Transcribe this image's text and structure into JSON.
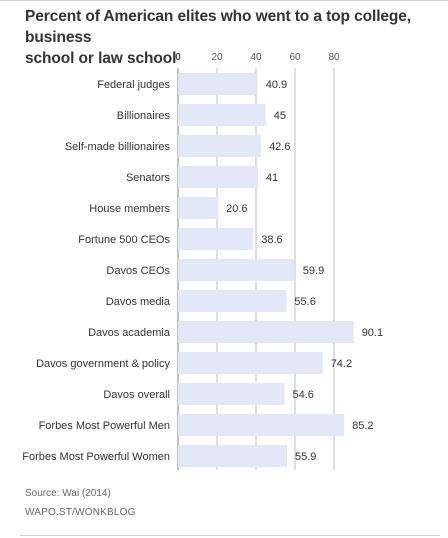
{
  "title_lines": [
    "Percent of American elites who went to a top college, business",
    "school or law school"
  ],
  "source": "Source: Wai (2014)",
  "credit": "WAPO.ST/WONKBLOG",
  "colors": {
    "bar": "#e3e8f8",
    "grid": "#bcbcbc",
    "label": "#333333",
    "value": "#333333"
  },
  "chart_data": {
    "type": "bar",
    "orientation": "horizontal",
    "categories": [
      "Federal judges",
      "Billionaires",
      "Self-made billionaires",
      "Senators",
      "House members",
      "Fortune 500 CEOs",
      "Davos CEOs",
      "Davos media",
      "Davos academia",
      "Davos government & policy",
      "Davos overall",
      "Forbes Most Powerful Men",
      "Forbes Most Powerful Women"
    ],
    "values": [
      40.9,
      45,
      42.6,
      41,
      20.6,
      38.6,
      59.9,
      55.6,
      90.1,
      74.2,
      54.6,
      85.2,
      55.9
    ],
    "value_labels": [
      "40.9",
      "45",
      "42.6",
      "41",
      "20.6",
      "38.6",
      "59.9",
      "55.6",
      "90.1",
      "74.2",
      "54.6",
      "85.2",
      "55.9"
    ],
    "xticks": [
      0,
      20,
      40,
      60,
      80
    ],
    "xtick_labels": [
      "0",
      "20",
      "40",
      "60",
      "80"
    ],
    "xlim": [
      0,
      100
    ],
    "grid": true
  }
}
